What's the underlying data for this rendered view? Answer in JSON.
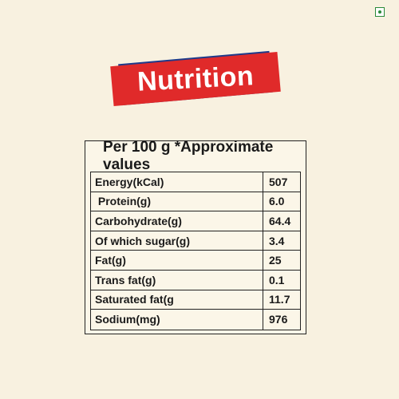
{
  "badge": {
    "color": "#2a8a3a"
  },
  "banner": {
    "title": "Nutrition",
    "front_color": "#e02a2a",
    "back_color": "#1e3a8a"
  },
  "table": {
    "header": "Per 100 g *Approximate values",
    "rows": [
      {
        "label": "Energy(kCal)",
        "value": "507"
      },
      {
        "label": " Protein(g)",
        "value": "6.0"
      },
      {
        "label": "Carbohydrate(g)",
        "value": "64.4"
      },
      {
        "label": "Of which sugar(g)",
        "value": "3.4"
      },
      {
        "label": "Fat(g)",
        "value": "25"
      },
      {
        "label": "Trans fat(g)",
        "value": "0.1"
      },
      {
        "label": "Saturated fat(g",
        "value": "11.7"
      },
      {
        "label": "Sodium(mg)",
        "value": "976"
      }
    ]
  }
}
